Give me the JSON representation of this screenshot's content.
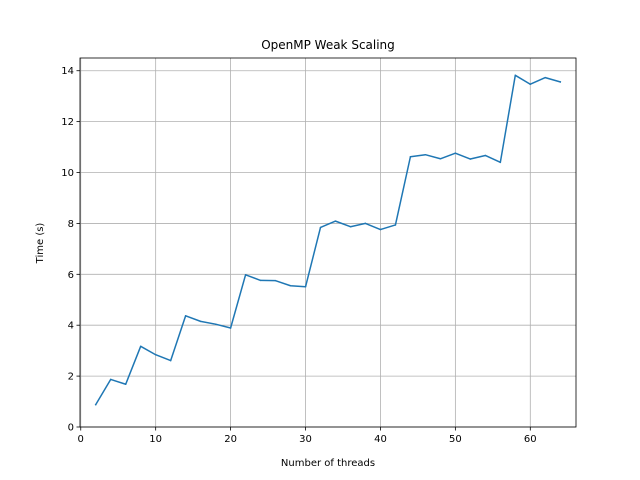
{
  "chart_data": {
    "type": "line",
    "title": "OpenMP Weak Scaling",
    "xlabel": "Number of threads",
    "ylabel": "Time (s)",
    "xlim": [
      -0.1,
      66.1
    ],
    "ylim": [
      0,
      14.5
    ],
    "xticks": [
      0,
      10,
      20,
      30,
      40,
      50,
      60
    ],
    "yticks": [
      0,
      2,
      4,
      6,
      8,
      10,
      12,
      14
    ],
    "grid": true,
    "series": [
      {
        "color": "#1f77b4",
        "x": [
          2,
          4,
          6,
          8,
          10,
          12,
          14,
          16,
          18,
          20,
          22,
          24,
          26,
          28,
          30,
          32,
          34,
          36,
          38,
          40,
          42,
          44,
          46,
          48,
          50,
          52,
          54,
          56,
          58,
          60,
          62,
          64
        ],
        "y": [
          0.88,
          1.87,
          1.68,
          3.17,
          2.84,
          2.61,
          4.37,
          4.15,
          4.04,
          3.89,
          5.98,
          5.76,
          5.75,
          5.55,
          5.51,
          7.84,
          8.09,
          7.87,
          8.0,
          7.76,
          7.94,
          10.62,
          10.7,
          10.54,
          10.76,
          10.53,
          10.67,
          10.4,
          13.82,
          13.47,
          13.73,
          13.56
        ]
      }
    ]
  }
}
